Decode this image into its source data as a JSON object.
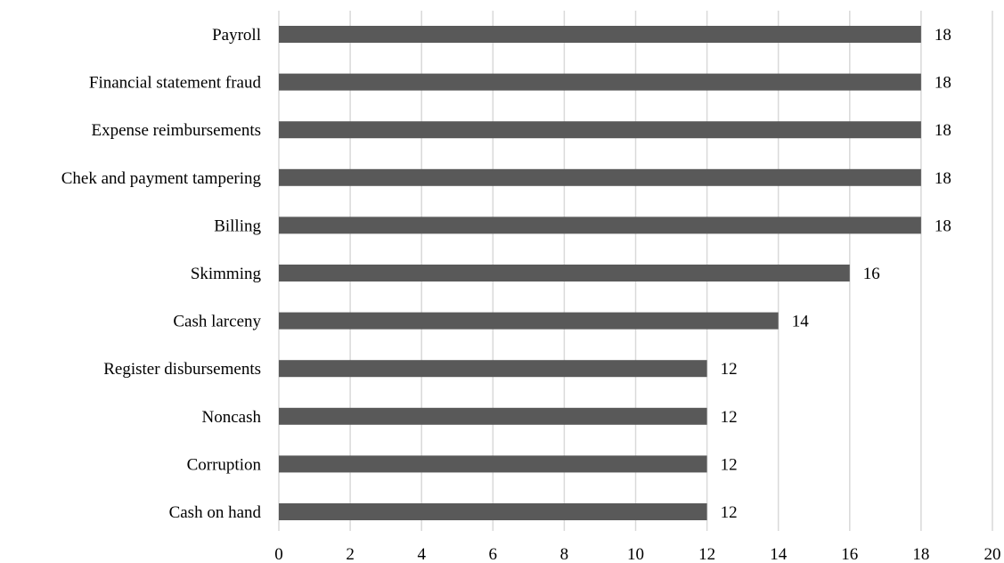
{
  "chart_data": {
    "type": "bar",
    "orientation": "horizontal",
    "categories": [
      "Payroll",
      "Financial statement fraud",
      "Expense reimbursements",
      "Chek and payment tampering",
      "Billing",
      "Skimming",
      "Cash larceny",
      "Register disbursements",
      "Noncash",
      "Corruption",
      "Cash on hand"
    ],
    "values": [
      18,
      18,
      18,
      18,
      18,
      16,
      14,
      12,
      12,
      12,
      12
    ],
    "xlim": [
      0,
      20
    ],
    "xticks": [
      0,
      2,
      4,
      6,
      8,
      10,
      12,
      14,
      16,
      18,
      20
    ],
    "title": "",
    "xlabel": "",
    "ylabel": "",
    "grid": "vertical",
    "data_labels": true,
    "legend": "none",
    "colors": {
      "bar": "#595959",
      "grid": "#d9d9d9",
      "text": "#000000"
    }
  }
}
